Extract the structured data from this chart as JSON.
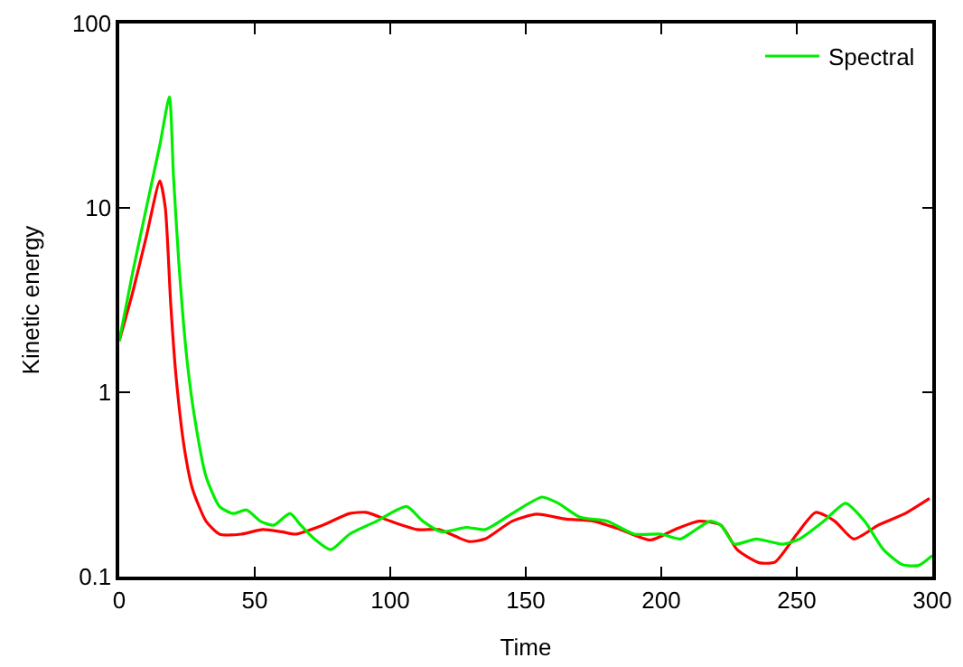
{
  "chart_data": {
    "type": "line",
    "xlabel": "Time",
    "ylabel": "Kinetic energy",
    "log": "y",
    "xlim": [
      0,
      300
    ],
    "xticks": [
      0,
      50,
      100,
      150,
      200,
      250,
      300
    ],
    "ylim": [
      0.1,
      100
    ],
    "yticks": [
      0.1,
      1,
      10,
      100
    ],
    "legend": "top right",
    "marker": "none",
    "line_style": "solid",
    "series": [
      {
        "color": "#ff0000",
        "x": [
          0,
          5,
          10,
          15,
          17,
          19,
          21,
          24,
          27,
          32,
          37,
          45,
          53,
          60,
          65,
          75,
          85,
          91,
          100,
          110,
          118,
          129,
          135,
          145,
          154,
          165,
          175,
          185,
          196,
          205,
          214,
          222,
          228,
          236,
          242,
          250,
          257,
          264,
          271,
          280,
          290,
          299
        ],
        "values": [
          1.9,
          3.5,
          7,
          14,
          10,
          3,
          1.2,
          0.5,
          0.3,
          0.2,
          0.17,
          0.17,
          0.18,
          0.175,
          0.17,
          0.19,
          0.22,
          0.223,
          0.2,
          0.18,
          0.18,
          0.155,
          0.16,
          0.2,
          0.218,
          0.205,
          0.2,
          0.18,
          0.158,
          0.18,
          0.2,
          0.19,
          0.14,
          0.119,
          0.12,
          0.17,
          0.223,
          0.2,
          0.16,
          0.19,
          0.22,
          0.266
        ]
      },
      {
        "name": "Spectral",
        "color": "#00ee00",
        "x": [
          0,
          5,
          10,
          15,
          18.5,
          20,
          22,
          25,
          28,
          32,
          37,
          42,
          47,
          52,
          57,
          63,
          67,
          72,
          78,
          85,
          95,
          106,
          112,
          119,
          128,
          135,
          145,
          156,
          162,
          170,
          180,
          190,
          200,
          207,
          218,
          222,
          227,
          235,
          245,
          251,
          260,
          268,
          275,
          282,
          289,
          295,
          300
        ],
        "values": [
          1.9,
          4.5,
          10,
          22,
          40,
          15,
          5,
          1.5,
          0.7,
          0.35,
          0.24,
          0.22,
          0.23,
          0.2,
          0.19,
          0.22,
          0.19,
          0.16,
          0.14,
          0.17,
          0.2,
          0.24,
          0.2,
          0.175,
          0.185,
          0.18,
          0.22,
          0.27,
          0.25,
          0.21,
          0.2,
          0.17,
          0.17,
          0.16,
          0.2,
          0.19,
          0.15,
          0.16,
          0.15,
          0.16,
          0.2,
          0.25,
          0.2,
          0.14,
          0.116,
          0.115,
          0.13
        ]
      }
    ]
  }
}
